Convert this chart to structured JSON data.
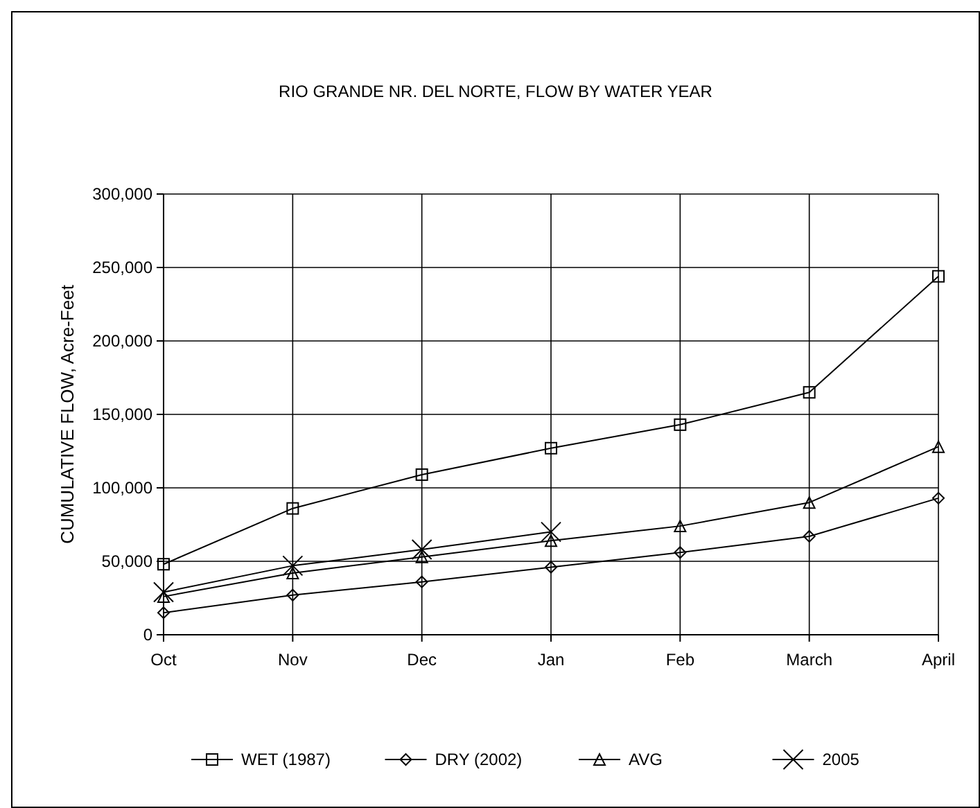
{
  "chart_data": {
    "type": "line",
    "title": "RIO GRANDE NR. DEL NORTE, FLOW BY WATER YEAR",
    "ylabel": "CUMULATIVE FLOW, Acre-Feet",
    "categories": [
      "Oct",
      "Nov",
      "Dec",
      "Jan",
      "Feb",
      "March",
      "April"
    ],
    "series": [
      {
        "name": "WET (1987)",
        "color": "#000000",
        "marker": "square",
        "values": [
          48000,
          86000,
          109000,
          127000,
          143000,
          165000,
          244000
        ]
      },
      {
        "name": "DRY (2002)",
        "color": "#000000",
        "marker": "diamond",
        "values": [
          15000,
          27000,
          36000,
          46000,
          56000,
          67000,
          93000
        ]
      },
      {
        "name": "AVG",
        "color": "#000000",
        "marker": "triangle",
        "values": [
          26000,
          42000,
          53000,
          64000,
          74000,
          90000,
          128000
        ]
      },
      {
        "name": "2005",
        "color": "#000000",
        "marker": "cross",
        "values": [
          29000,
          47000,
          58000,
          70000,
          null,
          null,
          null
        ]
      }
    ],
    "ylim": [
      0,
      300000
    ],
    "yticks": [
      {
        "value": 0,
        "label": "0"
      },
      {
        "value": 50000,
        "label": "50,000"
      },
      {
        "value": 100000,
        "label": "100,000"
      },
      {
        "value": 150000,
        "label": "150,000"
      },
      {
        "value": 200000,
        "label": "200,000"
      },
      {
        "value": 250000,
        "label": "250,000"
      },
      {
        "value": 300000,
        "label": "300,000"
      }
    ],
    "grid": true,
    "legend": "bottom",
    "line_style": "solid"
  }
}
